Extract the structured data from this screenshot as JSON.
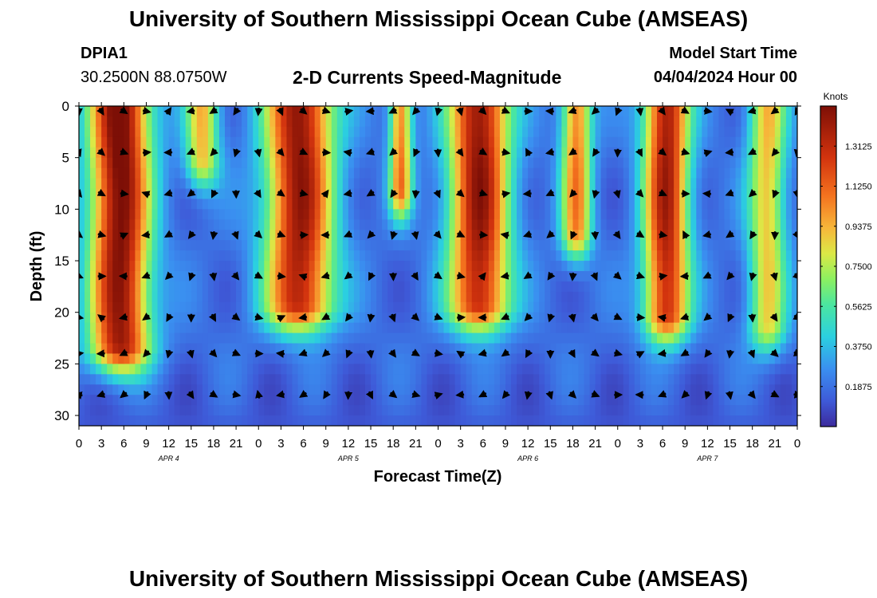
{
  "page": {
    "title_top": "University of Southern Mississippi Ocean Cube (AMSEAS)",
    "title_bottom": "University of Southern Mississippi Ocean Cube (AMSEAS)",
    "station_id": "DPIA1",
    "station_coords": "30.2500N  88.0750W",
    "chart_title": "2-D Currents Speed-Magnitude",
    "model_start_label": "Model Start Time",
    "model_start_value": "04/04/2024 Hour 00"
  },
  "chart_data": {
    "type": "heatmap",
    "title": "2-D Currents Speed-Magnitude",
    "xlabel": "Forecast Time(Z)",
    "ylabel": "Depth (ft)",
    "x_ticks": [
      0,
      3,
      6,
      9,
      12,
      15,
      18,
      21,
      24,
      27,
      30,
      33,
      36,
      39,
      42,
      45,
      48,
      51,
      54,
      57,
      60,
      63,
      66,
      69,
      72,
      75,
      78,
      81,
      84,
      87,
      90,
      93,
      96
    ],
    "x_tick_labels": [
      "0",
      "3",
      "6",
      "9",
      "12",
      "15",
      "18",
      "21",
      "0",
      "3",
      "6",
      "9",
      "12",
      "15",
      "18",
      "21",
      "0",
      "3",
      "6",
      "9",
      "12",
      "15",
      "18",
      "21",
      "0",
      "3",
      "6",
      "9",
      "12",
      "15",
      "18",
      "21",
      "0"
    ],
    "x_range_hours": [
      0,
      96
    ],
    "day_labels": [
      {
        "hour": 12,
        "label": "APR 4"
      },
      {
        "hour": 36,
        "label": "APR 5"
      },
      {
        "hour": 60,
        "label": "APR 6"
      },
      {
        "hour": 84,
        "label": "APR 7"
      }
    ],
    "y_ticks": [
      0,
      5,
      10,
      15,
      20,
      25,
      30
    ],
    "y_range_ft": [
      0,
      31
    ],
    "colorbar": {
      "label": "Knots",
      "range": [
        0.0,
        1.5
      ],
      "ticks": [
        0.1875,
        0.375,
        0.5625,
        0.75,
        0.9375,
        1.125,
        1.3125
      ],
      "tick_labels": [
        "0.1875",
        "0.3750",
        "0.5625",
        "0.7500",
        "0.9375",
        "1.1250",
        "1.3125"
      ]
    },
    "arrow_depths_ft": [
      0.5,
      4.5,
      8.5,
      12.5,
      16.5,
      20.5,
      24,
      28
    ],
    "arrow_hours": [
      0,
      3,
      6,
      9,
      12,
      15,
      18,
      21,
      24,
      27,
      30,
      33,
      36,
      39,
      42,
      45,
      48,
      51,
      54,
      57,
      60,
      63,
      66,
      69,
      72,
      75,
      78,
      81,
      84,
      87,
      90,
      93,
      96
    ],
    "speed_peaks": [
      {
        "center_hour": 5.5,
        "width_hours": 4.0,
        "depth_ft": 23,
        "speed": 1.4
      },
      {
        "center_hour": 16.5,
        "width_hours": 2.2,
        "depth_ft": 5,
        "speed": 0.75
      },
      {
        "center_hour": 29.5,
        "width_hours": 4.5,
        "depth_ft": 19,
        "speed": 1.3
      },
      {
        "center_hour": 43.0,
        "width_hours": 1.5,
        "depth_ft": 8,
        "speed": 0.9
      },
      {
        "center_hour": 53.5,
        "width_hours": 4.0,
        "depth_ft": 19,
        "speed": 1.3
      },
      {
        "center_hour": 66.5,
        "width_hours": 2.0,
        "depth_ft": 12,
        "speed": 0.9
      },
      {
        "center_hour": 78.5,
        "width_hours": 3.0,
        "depth_ft": 20,
        "speed": 1.25
      },
      {
        "center_hour": 92.0,
        "width_hours": 2.5,
        "depth_ft": 21,
        "speed": 0.75
      }
    ]
  }
}
